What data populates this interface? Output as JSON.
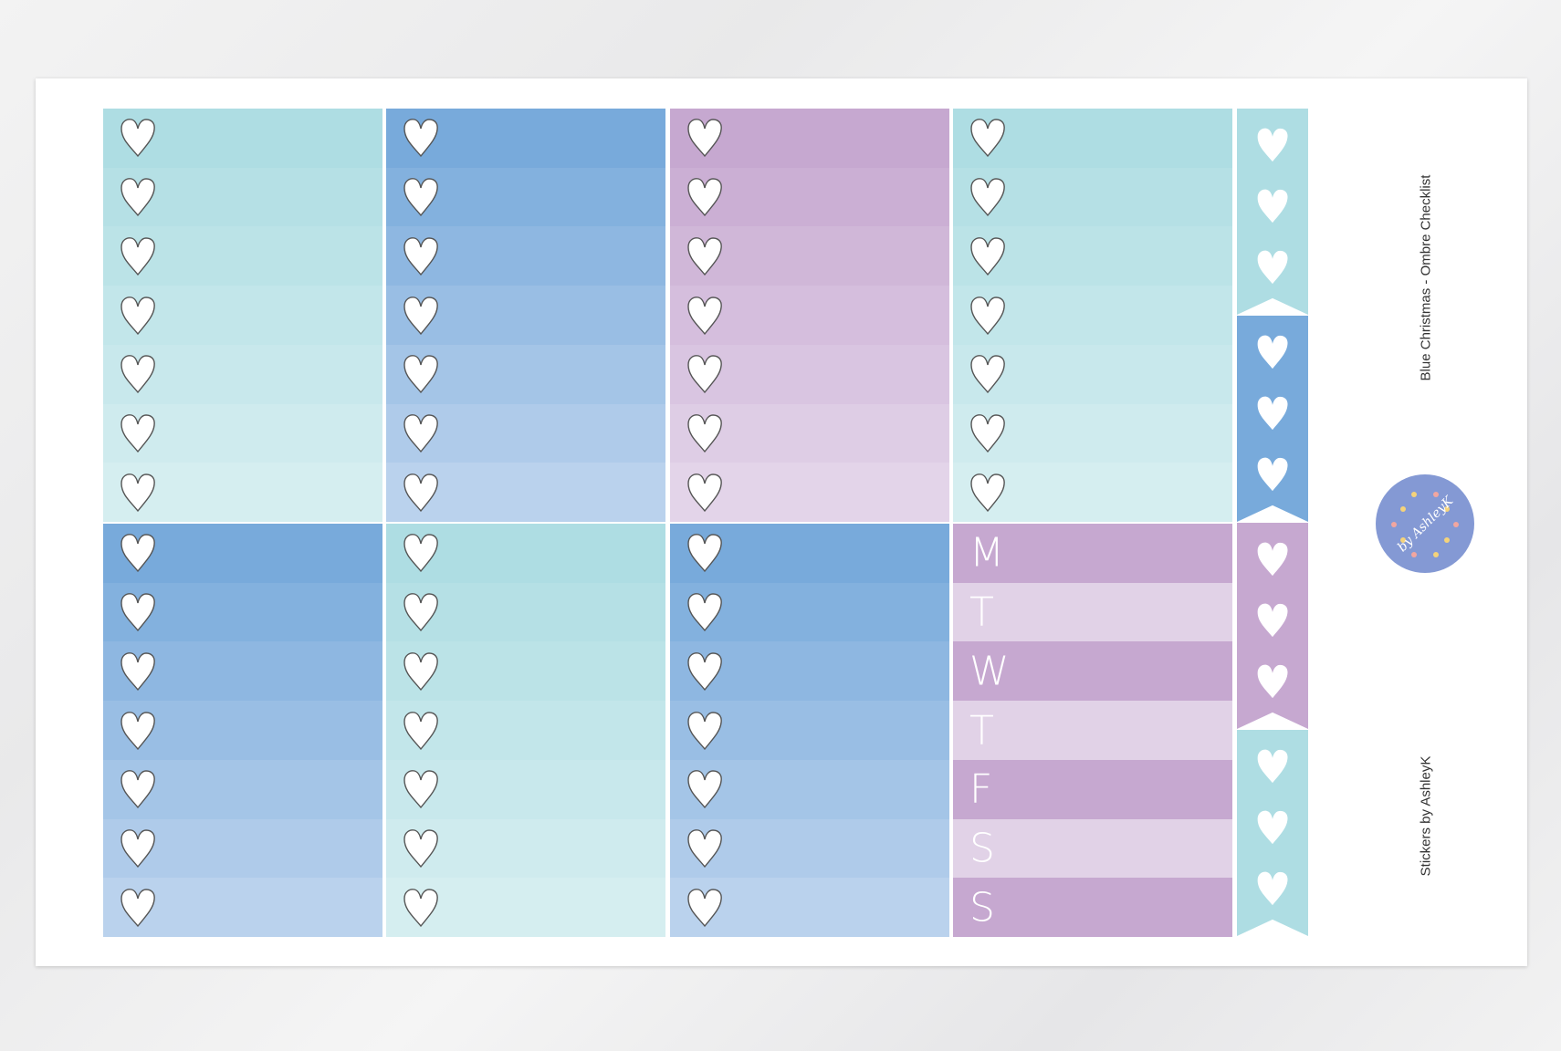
{
  "title": "Blue Christmas - Ombre Checklist",
  "credit": "Stickers by AshleyK",
  "logo": {
    "text": "by AshleyK",
    "color": "#8499D4"
  },
  "colors": {
    "teal": [
      "#AEDDE3",
      "#D5EEF0"
    ],
    "blue": [
      "#78AADB",
      "#BAD2ED"
    ],
    "purple": [
      "#C6A8D0",
      "#E3D4E9"
    ],
    "day_dark": "#C6A8D0",
    "day_light": "#E1D2E7"
  },
  "blocks": [
    {
      "color": "teal",
      "icon": "heart-icon"
    },
    {
      "color": "blue",
      "icon": "heart-icon"
    },
    {
      "color": "purple",
      "icon": "heart-icon"
    },
    {
      "color": "teal",
      "icon": "heart-icon"
    },
    {
      "color": "blue",
      "icon": "heart-icon"
    },
    {
      "color": "teal",
      "icon": "heart-icon"
    },
    {
      "color": "blue",
      "icon": "heart-icon"
    },
    {
      "color": "days",
      "days": [
        "M",
        "T",
        "W",
        "T",
        "F",
        "S",
        "S"
      ]
    }
  ],
  "flags": [
    {
      "color": "#AEDDE3"
    },
    {
      "color": "#78AADB"
    },
    {
      "color": "#C6A8D0"
    },
    {
      "color": "#AEDDE3"
    }
  ]
}
